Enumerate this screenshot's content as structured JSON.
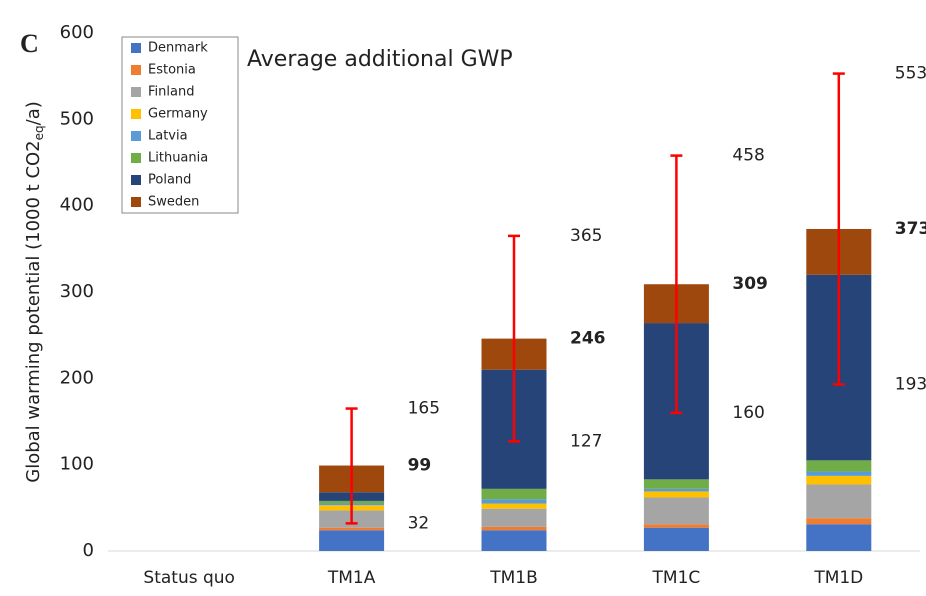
{
  "chart_data": {
    "type": "stacked_bar",
    "panel_label": "C",
    "title": "Average additional GWP",
    "ylabel": "Global warming potential (1000 t CO2",
    "ylabel_sub": "eq",
    "ylabel_end": "/a)",
    "categories": [
      "Status quo",
      "TM1A",
      "TM1B",
      "TM1C",
      "TM1D"
    ],
    "series": [
      {
        "name": "Denmark",
        "color": "#4472c4",
        "values": [
          0,
          24,
          24,
          27,
          31
        ]
      },
      {
        "name": "Estonia",
        "color": "#ed7d31",
        "values": [
          0,
          3,
          4,
          4,
          7
        ]
      },
      {
        "name": "Finland",
        "color": "#a5a5a5",
        "values": [
          0,
          20,
          21,
          31,
          39
        ]
      },
      {
        "name": "Germany",
        "color": "#ffc000",
        "values": [
          0,
          6,
          6,
          7,
          10
        ]
      },
      {
        "name": "Latvia",
        "color": "#5b9bd5",
        "values": [
          0,
          2,
          5,
          3,
          5
        ]
      },
      {
        "name": "Lithuania",
        "color": "#70ad47",
        "values": [
          0,
          3,
          12,
          11,
          13
        ]
      },
      {
        "name": "Poland",
        "color": "#264478",
        "values": [
          0,
          10,
          138,
          181,
          215
        ]
      },
      {
        "name": "Sweden",
        "color": "#9e480e",
        "values": [
          0,
          31,
          36,
          45,
          53
        ]
      }
    ],
    "totals": [
      null,
      99,
      246,
      309,
      373
    ],
    "error_low": [
      null,
      32,
      127,
      160,
      193
    ],
    "error_high": [
      null,
      165,
      365,
      458,
      553
    ],
    "error_color": "#ff0000",
    "ylim": [
      0,
      600
    ],
    "yticks": [
      0,
      100,
      200,
      300,
      400,
      500,
      600
    ],
    "grid": false,
    "legend": "top-left"
  }
}
